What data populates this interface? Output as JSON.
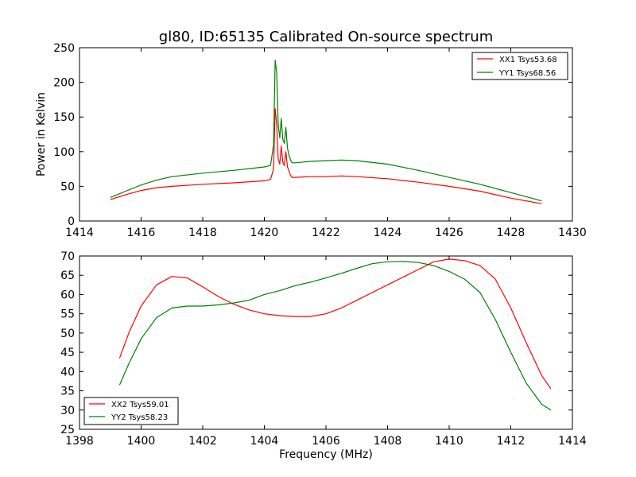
{
  "title": "gl80, ID:65135 Calibrated On-source spectrum",
  "chart_data": [
    {
      "type": "line",
      "ylabel": "Power in Kelvin",
      "xlabel": "",
      "xlim": [
        1414,
        1430
      ],
      "ylim": [
        0,
        250
      ],
      "xticks": [
        "1414",
        "1416",
        "1418",
        "1420",
        "1422",
        "1424",
        "1426",
        "1428",
        "1430"
      ],
      "yticks": [
        "0",
        "50",
        "100",
        "150",
        "200",
        "250"
      ],
      "legend_position": "top-right",
      "series": [
        {
          "name": "XX1 Tsys53.68",
          "color": "#ff0000",
          "x": [
            1415.0,
            1415.5,
            1416.0,
            1416.5,
            1417.0,
            1418.0,
            1419.0,
            1420.0,
            1420.2,
            1420.3,
            1420.35,
            1420.4,
            1420.45,
            1420.5,
            1420.55,
            1420.6,
            1420.65,
            1420.7,
            1420.75,
            1420.8,
            1420.85,
            1420.9,
            1421.0,
            1421.5,
            1422.0,
            1422.5,
            1423.0,
            1424.0,
            1425.0,
            1426.0,
            1427.0,
            1428.0,
            1429.0
          ],
          "y": [
            31,
            38,
            44,
            48,
            50,
            53,
            55,
            58,
            60,
            75,
            162,
            140,
            90,
            82,
            108,
            85,
            80,
            100,
            78,
            72,
            66,
            63,
            63,
            64,
            64,
            65,
            64,
            61,
            56,
            50,
            43,
            33,
            25
          ]
        },
        {
          "name": "YY1 Tsys68.56",
          "color": "#008000",
          "x": [
            1415.0,
            1415.5,
            1416.0,
            1416.5,
            1417.0,
            1418.0,
            1419.0,
            1420.0,
            1420.2,
            1420.3,
            1420.35,
            1420.4,
            1420.45,
            1420.5,
            1420.55,
            1420.6,
            1420.65,
            1420.7,
            1420.75,
            1420.8,
            1420.85,
            1420.9,
            1421.0,
            1421.5,
            1422.0,
            1422.5,
            1423.0,
            1424.0,
            1425.0,
            1426.0,
            1427.0,
            1428.0,
            1429.0
          ],
          "y": [
            34,
            43,
            52,
            59,
            64,
            69,
            73,
            78,
            80,
            110,
            232,
            215,
            140,
            120,
            148,
            118,
            112,
            135,
            105,
            95,
            88,
            84,
            84,
            86,
            87,
            88,
            87,
            82,
            73,
            63,
            53,
            41,
            29
          ]
        }
      ]
    },
    {
      "type": "line",
      "xlabel": "Frequency (MHz)",
      "ylabel": "",
      "xlim": [
        1398,
        1414
      ],
      "ylim": [
        25,
        70
      ],
      "xticks": [
        "1398",
        "1400",
        "1402",
        "1404",
        "1406",
        "1408",
        "1410",
        "1412",
        "1414"
      ],
      "yticks": [
        "25",
        "30",
        "35",
        "40",
        "45",
        "50",
        "55",
        "60",
        "65",
        "70"
      ],
      "legend_position": "bottom-left",
      "series": [
        {
          "name": "XX2 Tsys59.01",
          "color": "#ff0000",
          "x": [
            1399.3,
            1399.6,
            1400.0,
            1400.5,
            1401.0,
            1401.5,
            1402.0,
            1402.5,
            1403.0,
            1403.5,
            1404.0,
            1404.5,
            1405.0,
            1405.5,
            1406.0,
            1406.5,
            1407.0,
            1407.5,
            1408.0,
            1408.5,
            1409.0,
            1409.5,
            1410.0,
            1410.5,
            1411.0,
            1411.5,
            1412.0,
            1412.5,
            1413.0,
            1413.3
          ],
          "y": [
            43.5,
            50,
            57,
            62.5,
            64.7,
            64.3,
            62,
            59.5,
            57.5,
            56,
            55,
            54.5,
            54.3,
            54.3,
            55,
            56.5,
            58.5,
            60.5,
            62.5,
            64.5,
            66.5,
            68.5,
            69.2,
            68.8,
            67.5,
            64,
            56.5,
            47.5,
            39,
            35.5
          ]
        },
        {
          "name": "YY2 Tsys58.23",
          "color": "#008000",
          "x": [
            1399.3,
            1399.6,
            1400.0,
            1400.5,
            1401.0,
            1401.5,
            1402.0,
            1402.5,
            1403.0,
            1403.5,
            1404.0,
            1404.5,
            1405.0,
            1405.5,
            1406.0,
            1406.5,
            1407.0,
            1407.5,
            1408.0,
            1408.5,
            1409.0,
            1409.5,
            1410.0,
            1410.5,
            1411.0,
            1411.5,
            1412.0,
            1412.5,
            1413.0,
            1413.3
          ],
          "y": [
            36.5,
            42,
            48.5,
            54,
            56.5,
            57,
            57,
            57.3,
            57.8,
            58.5,
            60,
            61,
            62.3,
            63.2,
            64.3,
            65.5,
            66.8,
            68,
            68.5,
            68.6,
            68.3,
            67.5,
            66,
            64,
            60.5,
            53.5,
            45,
            37,
            31.5,
            30
          ]
        }
      ]
    }
  ]
}
